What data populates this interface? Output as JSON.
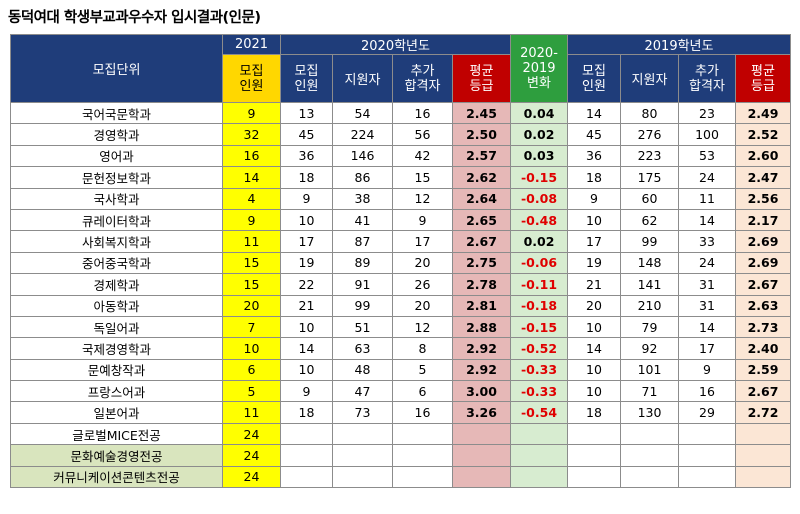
{
  "title": "동덕여대 학생부교과우수자 입시결과(인문)",
  "headers": {
    "dept": "모집단위",
    "y2021": "2021",
    "y2020": "2020학년도",
    "diff": [
      "2020-",
      "2019",
      "변화"
    ],
    "y2019": "2019학년도",
    "quota": [
      "모집",
      "인원"
    ],
    "applicants": "지원자",
    "extra": [
      "추가",
      "합격자"
    ],
    "grade": [
      "평균",
      "등급"
    ]
  },
  "rows": [
    {
      "dept": "국어국문학과",
      "q21": "9",
      "q20": "13",
      "app20": "54",
      "ex20": "16",
      "g20": "2.45",
      "diff": "0.04",
      "q19": "14",
      "app19": "80",
      "ex19": "23",
      "g19": "2.49"
    },
    {
      "dept": "경영학과",
      "q21": "32",
      "q20": "45",
      "app20": "224",
      "ex20": "56",
      "g20": "2.50",
      "diff": "0.02",
      "q19": "45",
      "app19": "276",
      "ex19": "100",
      "g19": "2.52"
    },
    {
      "dept": "영어과",
      "q21": "16",
      "q20": "36",
      "app20": "146",
      "ex20": "42",
      "g20": "2.57",
      "diff": "0.03",
      "q19": "36",
      "app19": "223",
      "ex19": "53",
      "g19": "2.60"
    },
    {
      "dept": "문헌정보학과",
      "q21": "14",
      "q20": "18",
      "app20": "86",
      "ex20": "15",
      "g20": "2.62",
      "diff": "-0.15",
      "q19": "18",
      "app19": "175",
      "ex19": "24",
      "g19": "2.47"
    },
    {
      "dept": "국사학과",
      "q21": "4",
      "q20": "9",
      "app20": "38",
      "ex20": "12",
      "g20": "2.64",
      "diff": "-0.08",
      "q19": "9",
      "app19": "60",
      "ex19": "11",
      "g19": "2.56"
    },
    {
      "dept": "큐레이터학과",
      "q21": "9",
      "q20": "10",
      "app20": "41",
      "ex20": "9",
      "g20": "2.65",
      "diff": "-0.48",
      "q19": "10",
      "app19": "62",
      "ex19": "14",
      "g19": "2.17"
    },
    {
      "dept": "사회복지학과",
      "q21": "11",
      "q20": "17",
      "app20": "87",
      "ex20": "17",
      "g20": "2.67",
      "diff": "0.02",
      "q19": "17",
      "app19": "99",
      "ex19": "33",
      "g19": "2.69"
    },
    {
      "dept": "중어중국학과",
      "q21": "15",
      "q20": "19",
      "app20": "89",
      "ex20": "20",
      "g20": "2.75",
      "diff": "-0.06",
      "q19": "19",
      "app19": "148",
      "ex19": "24",
      "g19": "2.69"
    },
    {
      "dept": "경제학과",
      "q21": "15",
      "q20": "22",
      "app20": "91",
      "ex20": "26",
      "g20": "2.78",
      "diff": "-0.11",
      "q19": "21",
      "app19": "141",
      "ex19": "31",
      "g19": "2.67"
    },
    {
      "dept": "아동학과",
      "q21": "20",
      "q20": "21",
      "app20": "99",
      "ex20": "20",
      "g20": "2.81",
      "diff": "-0.18",
      "q19": "20",
      "app19": "210",
      "ex19": "31",
      "g19": "2.63"
    },
    {
      "dept": "독일어과",
      "q21": "7",
      "q20": "10",
      "app20": "51",
      "ex20": "12",
      "g20": "2.88",
      "diff": "-0.15",
      "q19": "10",
      "app19": "79",
      "ex19": "14",
      "g19": "2.73"
    },
    {
      "dept": "국제경영학과",
      "q21": "10",
      "q20": "14",
      "app20": "63",
      "ex20": "8",
      "g20": "2.92",
      "diff": "-0.52",
      "q19": "14",
      "app19": "92",
      "ex19": "17",
      "g19": "2.40"
    },
    {
      "dept": "문예창작과",
      "q21": "6",
      "q20": "10",
      "app20": "48",
      "ex20": "5",
      "g20": "2.92",
      "diff": "-0.33",
      "q19": "10",
      "app19": "101",
      "ex19": "9",
      "g19": "2.59"
    },
    {
      "dept": "프랑스어과",
      "q21": "5",
      "q20": "9",
      "app20": "47",
      "ex20": "6",
      "g20": "3.00",
      "diff": "-0.33",
      "q19": "10",
      "app19": "71",
      "ex19": "16",
      "g19": "2.67"
    },
    {
      "dept": "일본어과",
      "q21": "11",
      "q20": "18",
      "app20": "73",
      "ex20": "16",
      "g20": "3.26",
      "diff": "-0.54",
      "q19": "18",
      "app19": "130",
      "ex19": "29",
      "g19": "2.72"
    },
    {
      "dept": "글로벌MICE전공",
      "q21": "24",
      "q20": "",
      "app20": "",
      "ex20": "",
      "g20": "",
      "diff": "",
      "q19": "",
      "app19": "",
      "ex19": "",
      "g19": ""
    },
    {
      "dept": "문화예술경영전공",
      "q21": "24",
      "q20": "",
      "app20": "",
      "ex20": "",
      "g20": "",
      "diff": "",
      "q19": "",
      "app19": "",
      "ex19": "",
      "g19": ""
    },
    {
      "dept": "커뮤니케이션콘텐츠전공",
      "q21": "24",
      "q20": "",
      "app20": "",
      "ex20": "",
      "g20": "",
      "diff": "",
      "q19": "",
      "app19": "",
      "ex19": "",
      "g19": ""
    }
  ],
  "green_dept_rows": [
    16,
    17
  ]
}
